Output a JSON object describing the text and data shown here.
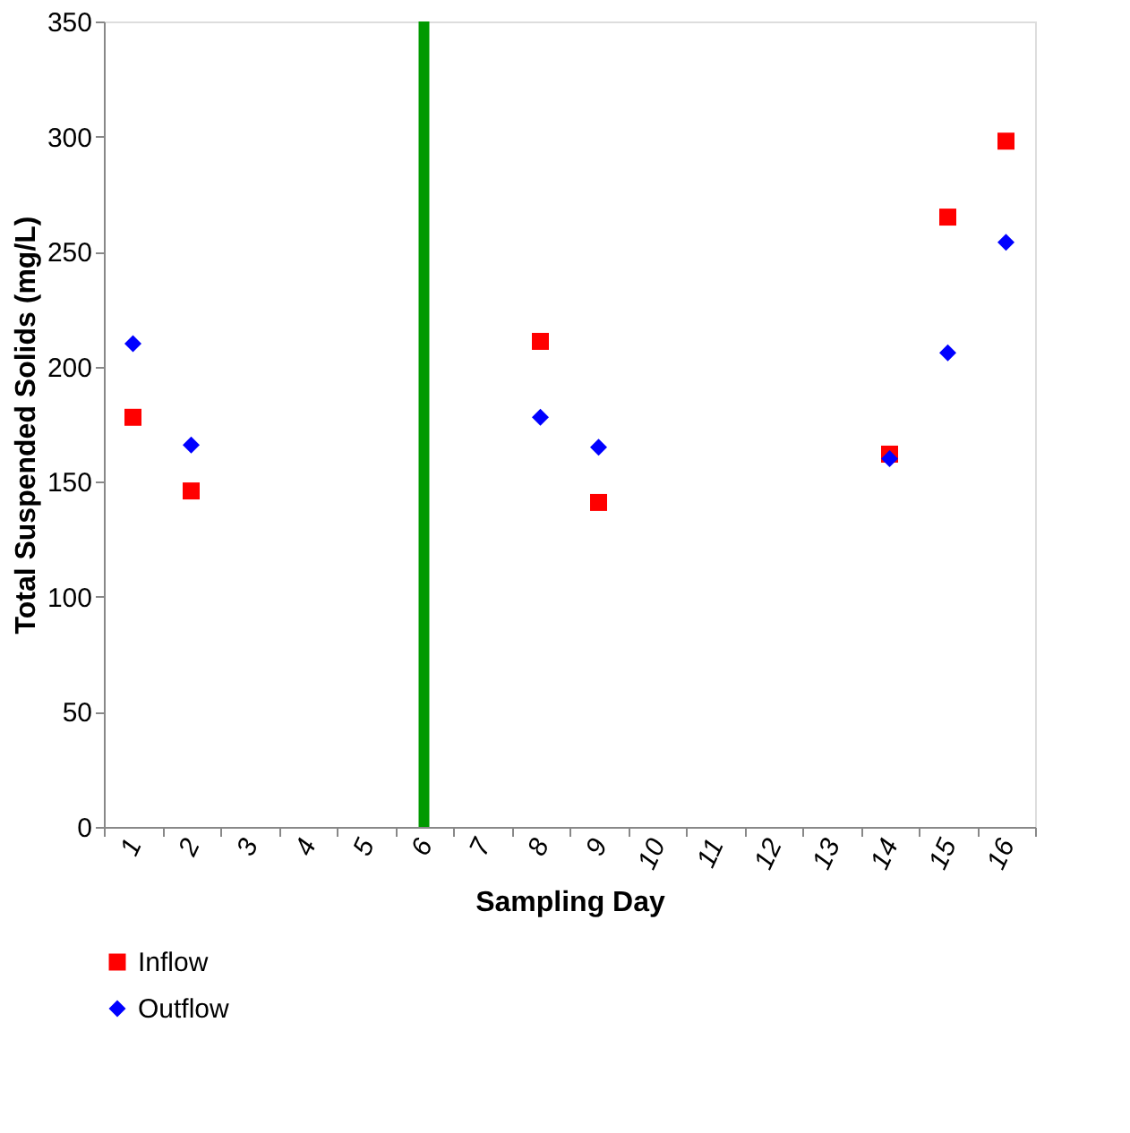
{
  "chart_data": {
    "type": "scatter",
    "xlabel": "Sampling Day",
    "ylabel": "Total Suspended Solids (mg/L)",
    "categories": [
      "1",
      "2",
      "3",
      "4",
      "5",
      "6",
      "7",
      "8",
      "9",
      "10",
      "11",
      "12",
      "13",
      "14",
      "15",
      "16"
    ],
    "series": [
      {
        "name": "Inflow",
        "color": "#ff0000",
        "marker": "square",
        "values": [
          178,
          146,
          null,
          null,
          null,
          null,
          null,
          211,
          141,
          null,
          null,
          null,
          null,
          162,
          265,
          298
        ]
      },
      {
        "name": "Outflow",
        "color": "#0000ff",
        "marker": "diamond",
        "values": [
          210,
          166,
          null,
          null,
          null,
          null,
          null,
          178,
          165,
          null,
          null,
          null,
          null,
          160,
          206,
          254
        ]
      }
    ],
    "ylim": [
      0,
      350
    ],
    "yticks": [
      0,
      50,
      100,
      150,
      200,
      250,
      300,
      350
    ],
    "ref_lines": [
      {
        "axis": "x",
        "value": "6",
        "color": "#009900"
      }
    ],
    "grid": false,
    "legend": "bottom"
  }
}
